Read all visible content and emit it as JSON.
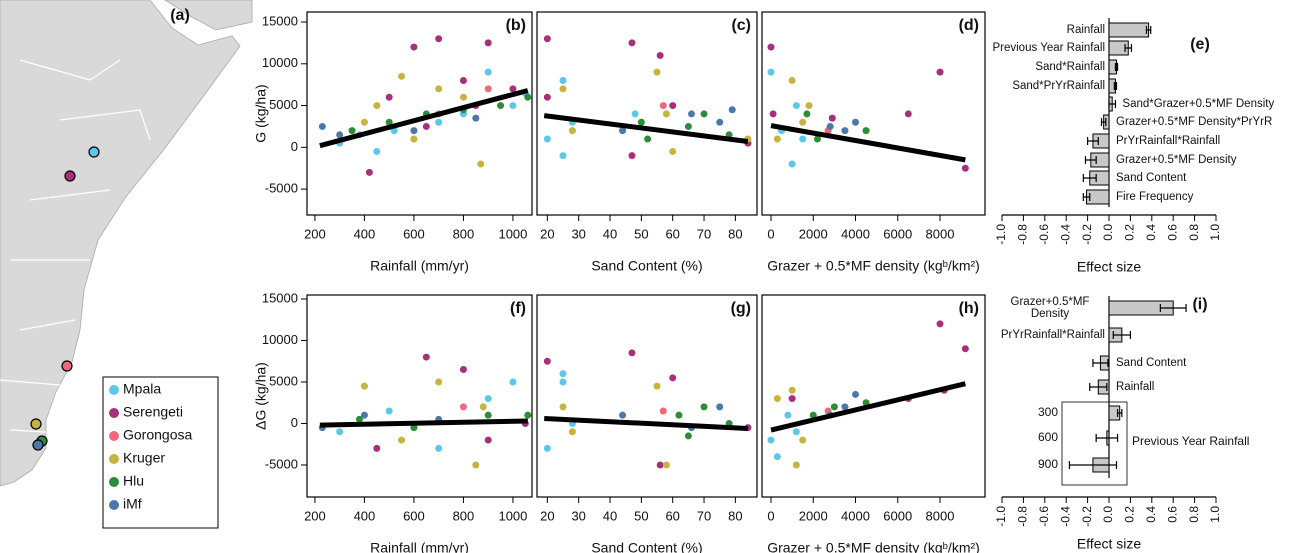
{
  "chart_data": [
    {
      "type": "map",
      "label": "(a)",
      "series": [
        {
          "name": "Mpala",
          "color": "#5bc8e8"
        },
        {
          "name": "Serengeti",
          "color": "#a8307a"
        },
        {
          "name": "Gorongosa",
          "color": "#f0687a"
        },
        {
          "name": "Kruger",
          "color": "#c8b43c"
        },
        {
          "name": "Hlu",
          "color": "#2e8b3a"
        },
        {
          "name": "iMf",
          "color": "#4a78a8"
        }
      ]
    },
    {
      "type": "scatter",
      "label": "(b)",
      "xlabel": "Rainfall (mm/yr)",
      "ylabel": "G (kg/ha)",
      "xlim": [
        168,
        1077
      ],
      "ylim": [
        -8100,
        16200
      ],
      "xticks": [
        200,
        400,
        600,
        800,
        1000
      ],
      "yticks": [
        -5000,
        0,
        5000,
        10000,
        15000
      ],
      "series": [
        {
          "color": "#5bc8e8",
          "x": [
            300,
            380,
            450,
            520,
            600,
            700,
            800,
            900,
            1000,
            1050
          ],
          "values": [
            500,
            1500,
            -500,
            2000,
            1000,
            3000,
            4000,
            9000,
            5000,
            6500
          ]
        },
        {
          "color": "#a8307a",
          "x": [
            420,
            500,
            600,
            650,
            700,
            800,
            850,
            900,
            1000
          ],
          "values": [
            -3000,
            6000,
            12000,
            2500,
            13000,
            8000,
            5000,
            12500,
            7000
          ]
        },
        {
          "color": "#f0687a",
          "x": [
            700,
            900
          ],
          "values": [
            4000,
            7000
          ]
        },
        {
          "color": "#c8b43c",
          "x": [
            400,
            450,
            550,
            600,
            700,
            800,
            870
          ],
          "values": [
            3000,
            5000,
            8500,
            1000,
            7000,
            6000,
            -2000
          ]
        },
        {
          "color": "#2e8b3a",
          "x": [
            350,
            500,
            650,
            800,
            950,
            1060
          ],
          "values": [
            2000,
            3000,
            4000,
            4500,
            5000,
            6000
          ]
        },
        {
          "color": "#4a78a8",
          "x": [
            230,
            300,
            600,
            850
          ],
          "values": [
            2500,
            1500,
            2000,
            3500
          ]
        }
      ],
      "fit": {
        "x": [
          220,
          1060
        ],
        "values": [
          200,
          6800
        ]
      }
    },
    {
      "type": "scatter",
      "label": "(c)",
      "xlabel": "Sand Content (%)",
      "xlim": [
        16.7,
        86.9
      ],
      "ylim": [
        -8100,
        16200
      ],
      "xticks": [
        20,
        30,
        40,
        50,
        60,
        70,
        80
      ],
      "series": [
        {
          "color": "#5bc8e8",
          "x": [
            20,
            25,
            25,
            28,
            48
          ],
          "values": [
            1000,
            8000,
            -1000,
            3000,
            4000
          ]
        },
        {
          "color": "#a8307a",
          "x": [
            20,
            20,
            47,
            47,
            56,
            60,
            84
          ],
          "values": [
            6000,
            13000,
            12500,
            -1000,
            11000,
            5000,
            500
          ]
        },
        {
          "color": "#f0687a",
          "x": [
            57
          ],
          "values": [
            5000
          ]
        },
        {
          "color": "#c8b43c",
          "x": [
            25,
            28,
            55,
            58,
            60,
            84
          ],
          "values": [
            7000,
            2000,
            9000,
            4000,
            -500,
            1000
          ]
        },
        {
          "color": "#2e8b3a",
          "x": [
            50,
            52,
            65,
            70,
            78
          ],
          "values": [
            3000,
            1000,
            2500,
            4000,
            1500
          ]
        },
        {
          "color": "#4a78a8",
          "x": [
            44,
            66,
            75,
            79
          ],
          "values": [
            2000,
            4000,
            3000,
            4500
          ]
        }
      ],
      "fit": {
        "x": [
          19,
          84
        ],
        "values": [
          3800,
          700
        ]
      }
    },
    {
      "type": "scatter",
      "label": "(d)",
      "xlabel": "Grazer + 0.5*MF density (kgᵇ/km²)",
      "xlim": [
        -426,
        10130
      ],
      "ylim": [
        -8100,
        16200
      ],
      "xticks": [
        0,
        2000,
        4000,
        6000,
        8000
      ],
      "series": [
        {
          "color": "#5bc8e8",
          "x": [
            0,
            500,
            1000,
            1200,
            1500
          ],
          "values": [
            9000,
            2000,
            -2000,
            5000,
            1000
          ]
        },
        {
          "color": "#a8307a",
          "x": [
            0,
            100,
            2900,
            6500,
            8000,
            9200
          ],
          "values": [
            12000,
            4000,
            3500,
            4000,
            9000,
            -2500
          ]
        },
        {
          "color": "#f0687a",
          "x": [
            2700
          ],
          "values": [
            2000
          ]
        },
        {
          "color": "#c8b43c",
          "x": [
            300,
            1000,
            1500,
            1800
          ],
          "values": [
            1000,
            8000,
            3000,
            5000
          ]
        },
        {
          "color": "#2e8b3a",
          "x": [
            1700,
            2200,
            4500
          ],
          "values": [
            4000,
            1000,
            2000
          ]
        },
        {
          "color": "#4a78a8",
          "x": [
            2800,
            3500,
            4000
          ],
          "values": [
            2500,
            2000,
            3000
          ]
        }
      ],
      "fit": {
        "x": [
          0,
          9200
        ],
        "values": [
          2600,
          -1500
        ]
      }
    },
    {
      "type": "scatter",
      "label": "(f)",
      "xlabel": "Rainfall (mm/yr)",
      "ylabel": "ΔG (kg/ha)",
      "xlim": [
        168,
        1077
      ],
      "ylim": [
        -8860,
        15480
      ],
      "xticks": [
        200,
        400,
        600,
        800,
        1000
      ],
      "yticks": [
        -5000,
        0,
        5000,
        10000,
        15000
      ],
      "series": [
        {
          "color": "#5bc8e8",
          "x": [
            300,
            500,
            700,
            900,
            1000
          ],
          "values": [
            -1000,
            1500,
            -3000,
            3000,
            5000
          ]
        },
        {
          "color": "#a8307a",
          "x": [
            450,
            650,
            800,
            900,
            1050
          ],
          "values": [
            -3000,
            8000,
            6500,
            -2000,
            0
          ]
        },
        {
          "color": "#f0687a",
          "x": [
            800
          ],
          "values": [
            2000
          ]
        },
        {
          "color": "#c8b43c",
          "x": [
            400,
            550,
            700,
            850,
            880
          ],
          "values": [
            4500,
            -2000,
            5000,
            -5000,
            2000
          ]
        },
        {
          "color": "#2e8b3a",
          "x": [
            380,
            600,
            900,
            1060
          ],
          "values": [
            500,
            -500,
            1000,
            1000
          ]
        },
        {
          "color": "#4a78a8",
          "x": [
            230,
            400,
            700
          ],
          "values": [
            -500,
            1000,
            500
          ]
        }
      ],
      "fit": {
        "x": [
          220,
          1060
        ],
        "values": [
          -200,
          300
        ]
      }
    },
    {
      "type": "scatter",
      "label": "(g)",
      "xlabel": "Sand Content (%)",
      "xlim": [
        16.7,
        86.9
      ],
      "ylim": [
        -8860,
        15480
      ],
      "xticks": [
        20,
        30,
        40,
        50,
        60,
        70,
        80
      ],
      "series": [
        {
          "color": "#5bc8e8",
          "x": [
            20,
            25,
            25,
            28
          ],
          "values": [
            -3000,
            5000,
            6000,
            0
          ]
        },
        {
          "color": "#a8307a",
          "x": [
            20,
            47,
            56,
            60,
            84
          ],
          "values": [
            7500,
            8500,
            -5000,
            5500,
            -500
          ]
        },
        {
          "color": "#f0687a",
          "x": [
            57
          ],
          "values": [
            1500
          ]
        },
        {
          "color": "#c8b43c",
          "x": [
            25,
            28,
            55,
            58
          ],
          "values": [
            2000,
            -1000,
            4500,
            -5000
          ]
        },
        {
          "color": "#2e8b3a",
          "x": [
            62,
            65,
            70,
            78
          ],
          "values": [
            1000,
            -1500,
            2000,
            0
          ]
        },
        {
          "color": "#4a78a8",
          "x": [
            44,
            66,
            75
          ],
          "values": [
            1000,
            -500,
            2000
          ]
        }
      ],
      "fit": {
        "x": [
          19,
          84
        ],
        "values": [
          600,
          -600
        ]
      }
    },
    {
      "type": "scatter",
      "label": "(h)",
      "xlabel": "Grazer + 0.5*MF density (kgᵇ/km²)",
      "xlim": [
        -426,
        10130
      ],
      "ylim": [
        -8860,
        15480
      ],
      "xticks": [
        0,
        2000,
        4000,
        6000,
        8000
      ],
      "series": [
        {
          "color": "#5bc8e8",
          "x": [
            0,
            300,
            800,
            1200
          ],
          "values": [
            -2000,
            -4000,
            1000,
            -1000
          ]
        },
        {
          "color": "#a8307a",
          "x": [
            1000,
            6500,
            8000,
            8200,
            9200
          ],
          "values": [
            3000,
            3000,
            12000,
            4000,
            9000
          ]
        },
        {
          "color": "#f0687a",
          "x": [
            2700
          ],
          "values": [
            1500
          ]
        },
        {
          "color": "#c8b43c",
          "x": [
            300,
            1000,
            1200,
            1500
          ],
          "values": [
            3000,
            4000,
            -5000,
            -2000
          ]
        },
        {
          "color": "#2e8b3a",
          "x": [
            2000,
            3000,
            4500
          ],
          "values": [
            1000,
            2000,
            2500
          ]
        },
        {
          "color": "#4a78a8",
          "x": [
            2800,
            3500,
            4000
          ],
          "values": [
            1000,
            2000,
            3500
          ]
        }
      ],
      "fit": {
        "x": [
          0,
          9200
        ],
        "values": [
          -800,
          4800
        ]
      }
    },
    {
      "type": "hbar",
      "label": "(e)",
      "xlabel": "Effect size",
      "color": "#c8c8c8",
      "xlim": [
        -1,
        1
      ],
      "xticks": [
        {
          "value": -1,
          "label": "-1.0"
        },
        -0.8,
        -0.6,
        -0.4,
        -0.2,
        {
          "value": 0,
          "label": "0.0"
        },
        0.2,
        0.4,
        0.6,
        0.8,
        {
          "value": 1,
          "label": "1.0"
        }
      ],
      "categories": [
        "Rainfall",
        "Previous Year Rainfall",
        "Sand*Rainfall",
        "Sand*PrYrRainfall",
        "Sand*Grazer+0.5*MF Density",
        "Grazer+0.5*MF Density*PrYrR",
        "PrYrRainfall*Rainfall",
        "Grazer+0.5*MF Density",
        "Sand Content",
        "Fire Frequency"
      ],
      "values": [
        0.37,
        0.18,
        0.07,
        0.06,
        0.03,
        -0.05,
        -0.15,
        -0.17,
        -0.18,
        -0.21
      ],
      "errors": [
        0.02,
        0.03,
        0.01,
        0.01,
        0.03,
        0.02,
        0.05,
        0.05,
        0.06,
        0.03
      ]
    },
    {
      "type": "hbar",
      "label": "(i)",
      "xlabel": "Effect size",
      "color": "#c8c8c8",
      "xlim": [
        -1,
        1
      ],
      "xticks": [
        {
          "value": -1,
          "label": "-1.0"
        },
        -0.8,
        -0.6,
        -0.4,
        -0.2,
        {
          "value": 0,
          "label": "0.0"
        },
        0.2,
        0.4,
        0.6,
        0.8,
        {
          "value": 1,
          "label": "1.0"
        }
      ],
      "categories": [
        "Grazer+0.5*MF Density",
        "PrYrRainfall*Rainfall",
        "Sand Content",
        "Rainfall"
      ],
      "values": [
        0.6,
        0.12,
        -0.08,
        -0.1
      ],
      "errors": [
        0.12,
        0.08,
        0.07,
        0.08
      ],
      "subgroup": {
        "name": "Previous Year Rainfall",
        "categories": [
          "300",
          "600",
          "900"
        ],
        "values": [
          0.1,
          -0.02,
          -0.15
        ],
        "errors": [
          0.02,
          0.1,
          0.22
        ]
      }
    }
  ]
}
